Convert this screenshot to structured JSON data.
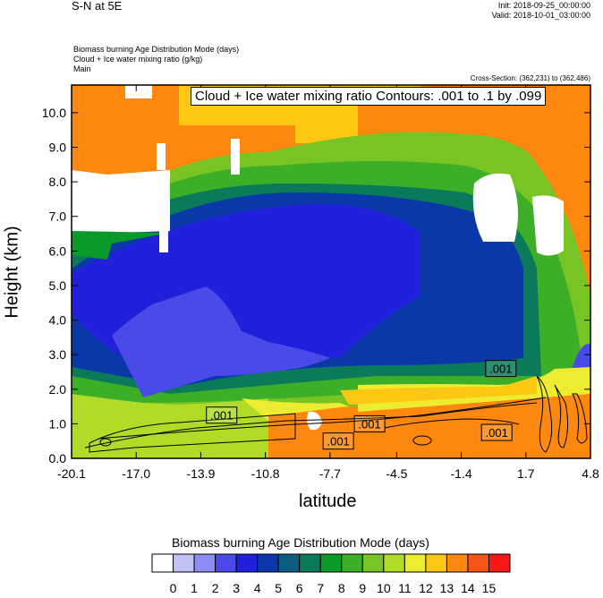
{
  "header": {
    "title": "S-N at 5E",
    "init": "Init: 2018-09-25_00:00:00",
    "valid": "Valid: 2018-10-01_03:00:00",
    "field1": "Biomass burning Age Distribution Mode   (days)",
    "field2": "Cloud + Ice water mixing ratio   (g/kg)",
    "field3": "Main",
    "cross_section": "Cross-Section: (362,231) to (362,486)"
  },
  "chart_data": {
    "type": "heatmap",
    "title": "Cloud + Ice water mixing ratio Contours: .001 to .1 by .099",
    "xlabel": "latitude",
    "ylabel": "Height (km)",
    "xlim": [
      -20.1,
      4.8
    ],
    "ylim": [
      0,
      10.8
    ],
    "x_ticks": [
      "-20.1",
      "-17.0",
      "-13.9",
      "-10.8",
      "-7.7",
      "-4.5",
      "-1.4",
      "1.7",
      "4.8"
    ],
    "y_ticks": [
      "0.0",
      "1.0",
      "2.0",
      "3.0",
      "4.0",
      "5.0",
      "6.0",
      "7.0",
      "8.0",
      "9.0",
      "10.0"
    ],
    "contour_labels": [
      {
        "text": ".001",
        "x": -12.9,
        "y": 1.25
      },
      {
        "text": ".001",
        "x": -7.3,
        "y": 0.5
      },
      {
        "text": ".001",
        "x": -5.8,
        "y": 1.0
      },
      {
        "text": ".001",
        "x": 0.5,
        "y": 2.6
      },
      {
        "text": ".001",
        "x": 0.3,
        "y": 0.75
      }
    ],
    "colorbar": {
      "title": "Biomass burning Age Distribution Mode  (days)",
      "labels": [
        "0",
        "1",
        "2",
        "3",
        "4",
        "5",
        "6",
        "7",
        "8",
        "9",
        "10",
        "11",
        "12",
        "13",
        "14",
        "15"
      ],
      "colors": [
        "#ffffff",
        "#c0c4f4",
        "#8c8cf2",
        "#4a4ae8",
        "#2020dc",
        "#0a38a8",
        "#0a5c80",
        "#0a7a5a",
        "#0a9a2a",
        "#3cae28",
        "#78c424",
        "#b0dc28",
        "#ecec30",
        "#fcc814",
        "#fc8810",
        "#f85418",
        "#f81818"
      ]
    }
  }
}
